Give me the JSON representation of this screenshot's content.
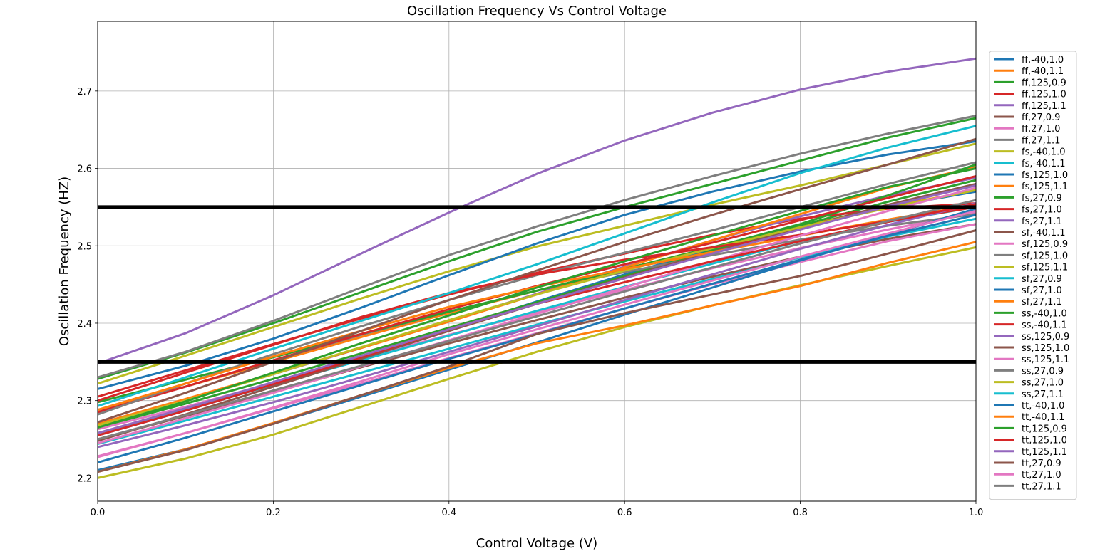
{
  "chart_data": {
    "type": "line",
    "title": "Oscillation Frequency Vs Control Voltage",
    "xlabel": "Control Voltage (V)",
    "ylabel": "Oscillation Frequency (HZ)",
    "xlim": [
      0.0,
      1.0
    ],
    "ylim": [
      2.17,
      2.79
    ],
    "xticks": [
      "0.0",
      "0.2",
      "0.4",
      "0.6",
      "0.8",
      "1.0"
    ],
    "yticks": [
      "2.2",
      "2.3",
      "2.4",
      "2.5",
      "2.6",
      "2.7"
    ],
    "grid": true,
    "legend_position": "right",
    "x": [
      0.0,
      0.1,
      0.2,
      0.3,
      0.4,
      0.5,
      0.6,
      0.7,
      0.8,
      0.9,
      1.0
    ],
    "reference_lines": [
      2.35,
      2.55
    ],
    "series": [
      {
        "name": "ff,-40,1.0",
        "color": "#1f77b4",
        "values": [
          2.255,
          2.287,
          2.321,
          2.356,
          2.392,
          2.428,
          2.463,
          2.496,
          2.525,
          2.55,
          2.57
        ]
      },
      {
        "name": "ff,-40,1.1",
        "color": "#ff7f0e",
        "values": [
          2.288,
          2.318,
          2.35,
          2.382,
          2.413,
          2.442,
          2.47,
          2.498,
          2.525,
          2.55,
          2.572
        ]
      },
      {
        "name": "ff,125,0.9",
        "color": "#2ca02c",
        "values": [
          2.265,
          2.296,
          2.328,
          2.361,
          2.394,
          2.427,
          2.461,
          2.494,
          2.526,
          2.557,
          2.585
        ]
      },
      {
        "name": "ff,125,1.0",
        "color": "#d62728",
        "values": [
          2.305,
          2.339,
          2.373,
          2.406,
          2.437,
          2.465,
          2.49,
          2.514,
          2.535,
          2.548,
          2.555
        ]
      },
      {
        "name": "ff,125,1.1",
        "color": "#9467bd",
        "values": [
          2.27,
          2.301,
          2.334,
          2.368,
          2.403,
          2.438,
          2.473,
          2.507,
          2.538,
          2.565,
          2.588
        ]
      },
      {
        "name": "ff,27,0.9",
        "color": "#8c564b",
        "values": [
          2.25,
          2.28,
          2.311,
          2.343,
          2.374,
          2.404,
          2.433,
          2.46,
          2.486,
          2.509,
          2.528
        ]
      },
      {
        "name": "ff,27,1.0",
        "color": "#e377c2",
        "values": [
          2.263,
          2.292,
          2.323,
          2.354,
          2.385,
          2.414,
          2.443,
          2.471,
          2.497,
          2.521,
          2.543
        ]
      },
      {
        "name": "ff,27,1.1",
        "color": "#7f7f7f",
        "values": [
          2.285,
          2.318,
          2.352,
          2.385,
          2.415,
          2.442,
          2.466,
          2.488,
          2.508,
          2.526,
          2.541
        ]
      },
      {
        "name": "fs,-40,1.0",
        "color": "#bcbd22",
        "values": [
          2.322,
          2.358,
          2.395,
          2.432,
          2.467,
          2.499,
          2.526,
          2.553,
          2.578,
          2.605,
          2.632
        ]
      },
      {
        "name": "fs,-40,1.1",
        "color": "#17becf",
        "values": [
          2.258,
          2.289,
          2.32,
          2.352,
          2.384,
          2.416,
          2.447,
          2.477,
          2.506,
          2.531,
          2.55
        ]
      },
      {
        "name": "fs,125,1.0",
        "color": "#1f77b4",
        "values": [
          2.315,
          2.345,
          2.38,
          2.42,
          2.462,
          2.503,
          2.54,
          2.57,
          2.596,
          2.618,
          2.635
        ]
      },
      {
        "name": "fs,125,1.1",
        "color": "#ff7f0e",
        "values": [
          2.27,
          2.302,
          2.335,
          2.368,
          2.402,
          2.437,
          2.472,
          2.507,
          2.541,
          2.575,
          2.602
        ]
      },
      {
        "name": "fs,27,0.9",
        "color": "#2ca02c",
        "values": [
          2.298,
          2.327,
          2.356,
          2.386,
          2.415,
          2.442,
          2.47,
          2.498,
          2.528,
          2.565,
          2.605
        ]
      },
      {
        "name": "fs,27,1.0",
        "color": "#d62728",
        "values": [
          2.285,
          2.318,
          2.352,
          2.386,
          2.418,
          2.448,
          2.476,
          2.504,
          2.533,
          2.562,
          2.59
        ]
      },
      {
        "name": "fs,27,1.1",
        "color": "#9467bd",
        "values": [
          2.348,
          2.387,
          2.436,
          2.49,
          2.543,
          2.593,
          2.636,
          2.672,
          2.702,
          2.725,
          2.742
        ]
      },
      {
        "name": "sf,-40,1.1",
        "color": "#8c564b",
        "values": [
          2.248,
          2.282,
          2.318,
          2.354,
          2.39,
          2.425,
          2.459,
          2.492,
          2.523,
          2.553,
          2.58
        ]
      },
      {
        "name": "sf,125,0.9",
        "color": "#e377c2",
        "values": [
          2.228,
          2.258,
          2.29,
          2.322,
          2.355,
          2.387,
          2.419,
          2.45,
          2.479,
          2.506,
          2.528
        ]
      },
      {
        "name": "sf,125,1.0",
        "color": "#7f7f7f",
        "values": [
          2.282,
          2.322,
          2.36,
          2.396,
          2.43,
          2.462,
          2.491,
          2.52,
          2.55,
          2.58,
          2.608
        ]
      },
      {
        "name": "sf,125,1.1",
        "color": "#bcbd22",
        "values": [
          2.268,
          2.3,
          2.334,
          2.369,
          2.404,
          2.437,
          2.468,
          2.497,
          2.524,
          2.549,
          2.572
        ]
      },
      {
        "name": "sf,27,0.9",
        "color": "#17becf",
        "values": [
          2.244,
          2.274,
          2.305,
          2.336,
          2.367,
          2.398,
          2.428,
          2.457,
          2.485,
          2.512,
          2.535
        ]
      },
      {
        "name": "sf,27,1.0",
        "color": "#1f77b4",
        "values": [
          2.22,
          2.252,
          2.286,
          2.32,
          2.354,
          2.386,
          2.419,
          2.451,
          2.482,
          2.513,
          2.54
        ]
      },
      {
        "name": "sf,27,1.1",
        "color": "#ff7f0e",
        "values": [
          2.288,
          2.322,
          2.357,
          2.39,
          2.421,
          2.447,
          2.47,
          2.492,
          2.513,
          2.534,
          2.553
        ]
      },
      {
        "name": "ss,-40,1.0",
        "color": "#2ca02c",
        "values": [
          2.328,
          2.362,
          2.4,
          2.44,
          2.48,
          2.518,
          2.55,
          2.58,
          2.61,
          2.64,
          2.665
        ]
      },
      {
        "name": "ss,-40,1.1",
        "color": "#d62728",
        "values": [
          2.3,
          2.336,
          2.372,
          2.408,
          2.439,
          2.463,
          2.482,
          2.498,
          2.514,
          2.532,
          2.55
        ]
      },
      {
        "name": "ss,125,0.9",
        "color": "#9467bd",
        "values": [
          2.24,
          2.268,
          2.298,
          2.33,
          2.363,
          2.396,
          2.43,
          2.463,
          2.496,
          2.527,
          2.555
        ]
      },
      {
        "name": "ss,125,1.0",
        "color": "#8c564b",
        "values": [
          2.272,
          2.31,
          2.35,
          2.39,
          2.43,
          2.468,
          2.505,
          2.54,
          2.573,
          2.605,
          2.638
        ]
      },
      {
        "name": "ss,125,1.1",
        "color": "#e377c2",
        "values": [
          2.245,
          2.277,
          2.31,
          2.344,
          2.378,
          2.412,
          2.446,
          2.48,
          2.513,
          2.545,
          2.575
        ]
      },
      {
        "name": "ss,27,0.9",
        "color": "#7f7f7f",
        "values": [
          2.33,
          2.363,
          2.403,
          2.446,
          2.488,
          2.525,
          2.559,
          2.59,
          2.619,
          2.645,
          2.668
        ]
      },
      {
        "name": "ss,27,1.0",
        "color": "#bcbd22",
        "values": [
          2.2,
          2.225,
          2.256,
          2.292,
          2.328,
          2.363,
          2.395,
          2.423,
          2.449,
          2.474,
          2.498
        ]
      },
      {
        "name": "ss,27,1.1",
        "color": "#17becf",
        "values": [
          2.293,
          2.33,
          2.367,
          2.403,
          2.439,
          2.476,
          2.516,
          2.556,
          2.594,
          2.627,
          2.655
        ]
      },
      {
        "name": "tt,-40,1.0",
        "color": "#1f77b4",
        "values": [
          2.21,
          2.237,
          2.27,
          2.305,
          2.34,
          2.375,
          2.411,
          2.446,
          2.481,
          2.514,
          2.548
        ]
      },
      {
        "name": "tt,-40,1.1",
        "color": "#ff7f0e",
        "values": [
          2.208,
          2.237,
          2.271,
          2.307,
          2.342,
          2.374,
          2.397,
          2.423,
          2.448,
          2.478,
          2.505
        ]
      },
      {
        "name": "tt,125,0.9",
        "color": "#2ca02c",
        "values": [
          2.265,
          2.299,
          2.336,
          2.374,
          2.41,
          2.446,
          2.48,
          2.513,
          2.545,
          2.576,
          2.6
        ]
      },
      {
        "name": "tt,125,1.0",
        "color": "#d62728",
        "values": [
          2.255,
          2.287,
          2.321,
          2.356,
          2.392,
          2.425,
          2.453,
          2.48,
          2.506,
          2.531,
          2.554
        ]
      },
      {
        "name": "tt,125,1.1",
        "color": "#9467bd",
        "values": [
          2.258,
          2.29,
          2.324,
          2.358,
          2.392,
          2.425,
          2.458,
          2.49,
          2.521,
          2.551,
          2.578
        ]
      },
      {
        "name": "tt,27,0.9",
        "color": "#8c564b",
        "values": [
          2.208,
          2.236,
          2.27,
          2.307,
          2.344,
          2.386,
          2.413,
          2.437,
          2.461,
          2.49,
          2.52
        ]
      },
      {
        "name": "tt,27,1.0",
        "color": "#e377c2",
        "values": [
          2.227,
          2.258,
          2.291,
          2.325,
          2.36,
          2.392,
          2.424,
          2.455,
          2.486,
          2.516,
          2.545
        ]
      },
      {
        "name": "tt,27,1.1",
        "color": "#7f7f7f",
        "values": [
          2.25,
          2.281,
          2.313,
          2.345,
          2.377,
          2.409,
          2.441,
          2.472,
          2.503,
          2.532,
          2.559
        ]
      }
    ]
  }
}
